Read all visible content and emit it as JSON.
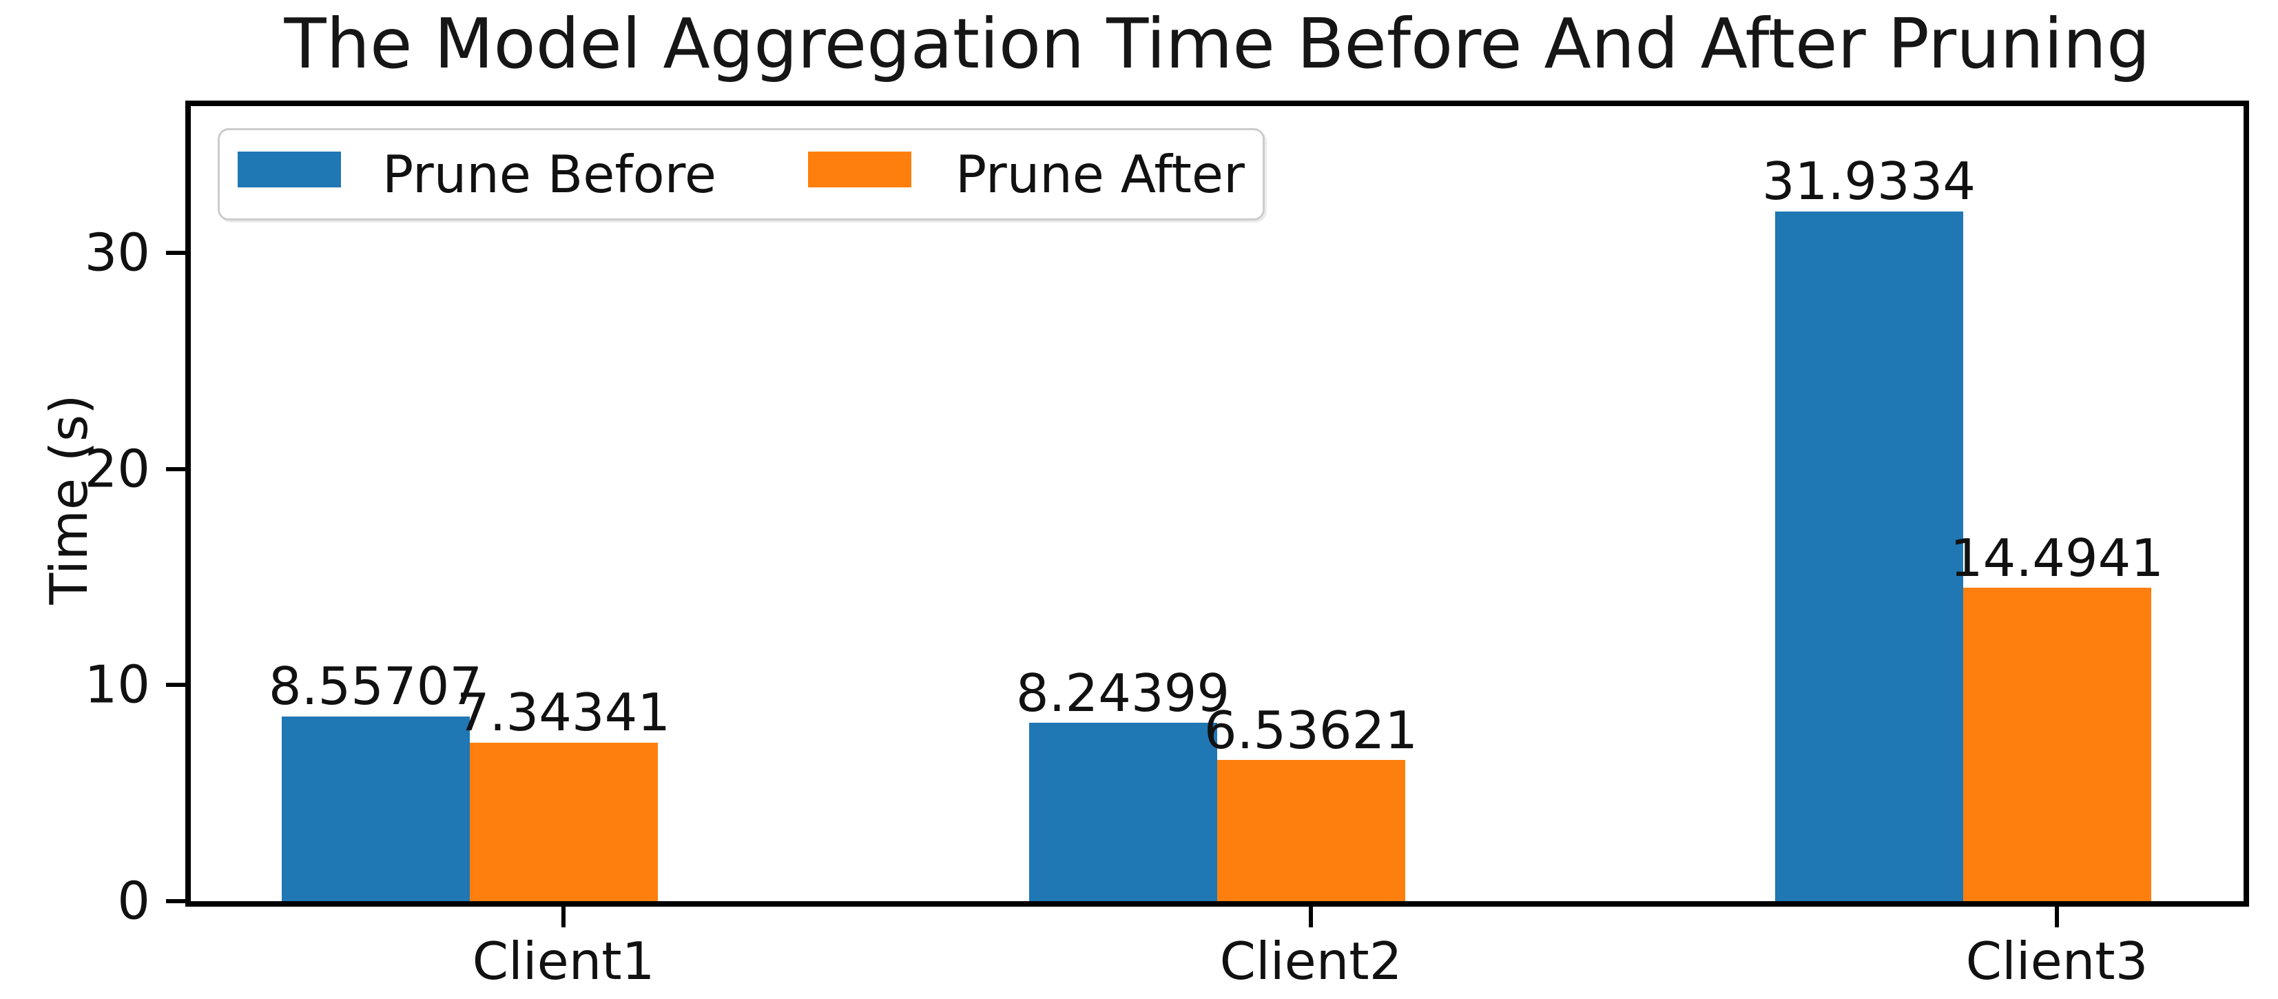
{
  "chart_data": {
    "type": "bar",
    "title": "The Model Aggregation Time Before And After Pruning",
    "xlabel": "",
    "ylabel": "Time (s)",
    "categories": [
      "Client1",
      "Client2",
      "Client3"
    ],
    "series": [
      {
        "name": "Prune Before",
        "color": "#1f77b4",
        "values": [
          8.55707,
          8.24399,
          31.9334
        ],
        "value_labels": [
          "8.55707",
          "8.24399",
          "31.9334"
        ]
      },
      {
        "name": "Prune After",
        "color": "#ff7f0e",
        "values": [
          7.34341,
          6.53621,
          14.4941
        ],
        "value_labels": [
          "7.34341",
          "6.53621",
          "14.4941"
        ]
      }
    ],
    "ylim": [
      0,
      36.8
    ],
    "yticks": [
      0,
      10,
      20,
      30
    ],
    "grid": false,
    "legend": {
      "position": "upper left"
    },
    "bar_value_labels": true,
    "colors": {
      "text": "#111111",
      "spine": "#000000",
      "legend_border": "#cccccc",
      "background": "#ffffff"
    }
  }
}
